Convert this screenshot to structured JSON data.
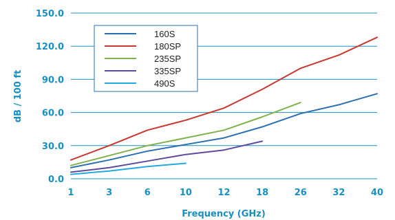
{
  "chart_data": {
    "type": "line",
    "title": "",
    "xlabel": "Frequency (GHz)",
    "ylabel": "dB / 100 ft",
    "categories": [
      "1",
      "3",
      "6",
      "10",
      "12",
      "18",
      "26",
      "32",
      "40"
    ],
    "yticks": [
      "0.0",
      "30.0",
      "60.0",
      "90.0",
      "120.0",
      "150.0"
    ],
    "ylim": [
      0,
      150
    ],
    "grid": "horizontal",
    "legend_position": "top-left",
    "axis_color": "#1a8fc1",
    "series": [
      {
        "name": "160S",
        "color": "#2b6fb0",
        "values": [
          10,
          17,
          25,
          31,
          37,
          47,
          59,
          67,
          77
        ]
      },
      {
        "name": "180SP",
        "color": "#c8372d",
        "values": [
          17,
          30,
          44,
          53,
          64,
          81,
          100,
          112,
          128
        ]
      },
      {
        "name": "235SP",
        "color": "#7fb24a",
        "values": [
          12,
          21,
          30,
          37,
          44,
          56,
          69,
          null,
          null
        ]
      },
      {
        "name": "335SP",
        "color": "#5b4a9e",
        "values": [
          6,
          10,
          16,
          22,
          26,
          34,
          null,
          null,
          null
        ]
      },
      {
        "name": "490S",
        "color": "#23a9dd",
        "values": [
          4,
          7,
          11,
          14,
          null,
          null,
          null,
          null,
          null
        ]
      }
    ]
  }
}
